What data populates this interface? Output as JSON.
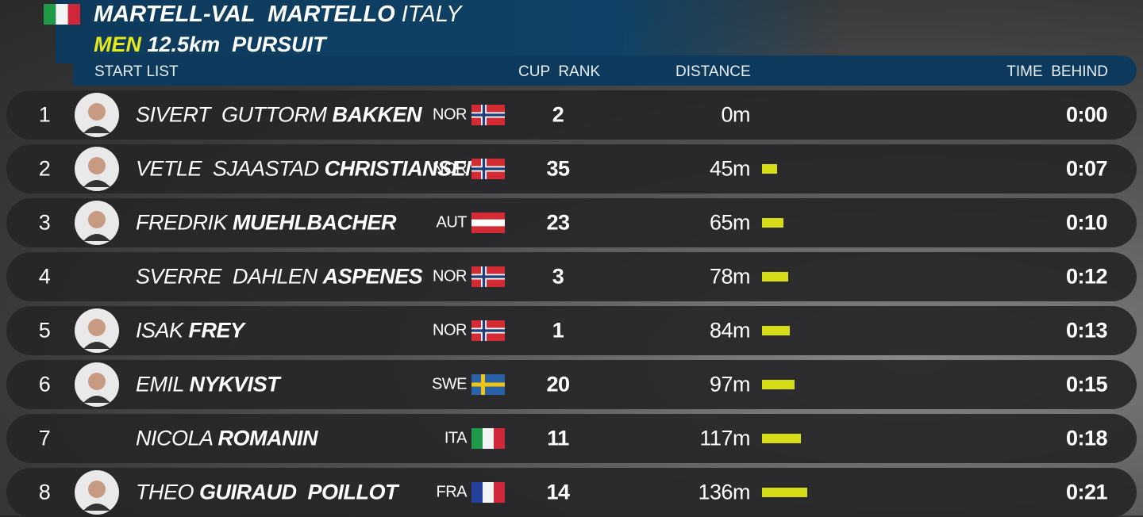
{
  "header": {
    "venue": "MARTELL-VAL  MARTELLO",
    "country": "ITALY",
    "category": "MEN",
    "event": "12.5km  PURSUIT"
  },
  "columns": [
    "START LIST",
    "CUP  RANK",
    "DISTANCE",
    "TIME  BEHIND"
  ],
  "rows": [
    {
      "rank": 1,
      "first": "SIVERT  GUTTORM",
      "last": "BAKKEN",
      "nation": "NOR",
      "photo": true,
      "cup_rank": 2,
      "distance": 0,
      "distance_label": "0m",
      "time_behind": "0:00"
    },
    {
      "rank": 2,
      "first": "VETLE  SJAASTAD",
      "last": "CHRISTIANSEN",
      "nation": "NOR",
      "photo": true,
      "cup_rank": 35,
      "distance": 45,
      "distance_label": "45m",
      "time_behind": "0:07"
    },
    {
      "rank": 3,
      "first": "FREDRIK",
      "last": "MUEHLBACHER",
      "nation": "AUT",
      "photo": true,
      "cup_rank": 23,
      "distance": 65,
      "distance_label": "65m",
      "time_behind": "0:10"
    },
    {
      "rank": 4,
      "first": "SVERRE  DAHLEN",
      "last": "ASPENES",
      "nation": "NOR",
      "photo": false,
      "cup_rank": 3,
      "distance": 78,
      "distance_label": "78m",
      "time_behind": "0:12"
    },
    {
      "rank": 5,
      "first": "ISAK",
      "last": "FREY",
      "nation": "NOR",
      "photo": true,
      "cup_rank": 1,
      "distance": 84,
      "distance_label": "84m",
      "time_behind": "0:13"
    },
    {
      "rank": 6,
      "first": "EMIL",
      "last": "NYKVIST",
      "nation": "SWE",
      "photo": true,
      "cup_rank": 20,
      "distance": 97,
      "distance_label": "97m",
      "time_behind": "0:15"
    },
    {
      "rank": 7,
      "first": "NICOLA",
      "last": "ROMANIN",
      "nation": "ITA",
      "photo": false,
      "cup_rank": 11,
      "distance": 117,
      "distance_label": "117m",
      "time_behind": "0:18"
    },
    {
      "rank": 8,
      "first": "THEO",
      "last": "GUIRAUD  POILLOT",
      "nation": "FRA",
      "photo": true,
      "cup_rank": 14,
      "distance": 136,
      "distance_label": "136m",
      "time_behind": "0:21"
    }
  ]
}
